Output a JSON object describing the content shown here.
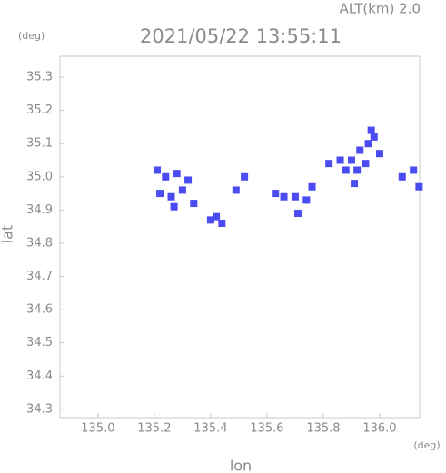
{
  "chart_data": {
    "type": "scatter",
    "title": "2021/05/22 13:55:11",
    "annotation": "ALT(km) 2.0",
    "y_unit": "(deg)",
    "x_unit": "(deg)",
    "x_label": "lon",
    "y_label": "lat",
    "color": "#4a4cf2",
    "xlim": [
      134.865,
      136.142
    ],
    "ylim": [
      34.275,
      35.363
    ],
    "xticks": [
      {
        "value": 135.0,
        "label": "135.0"
      },
      135.2,
      135.4,
      135.6,
      135.8,
      {
        "value": 136.0,
        "label": "136.0"
      }
    ],
    "yticks": [
      34.3,
      34.4,
      34.5,
      34.6,
      34.7,
      34.8,
      34.9,
      {
        "value": 35.0,
        "label": "35.0"
      },
      35.1,
      35.2,
      35.3
    ],
    "x": [
      135.21,
      135.24,
      135.28,
      135.22,
      135.26,
      135.3,
      135.32,
      135.27,
      135.34,
      135.4,
      135.44,
      135.42,
      135.52,
      135.49,
      135.63,
      135.66,
      135.7,
      135.74,
      135.76,
      135.71,
      135.82,
      135.86,
      135.9,
      135.93,
      135.96,
      135.98,
      136.0,
      135.95,
      135.92,
      135.88,
      135.97,
      136.12,
      136.14,
      136.08,
      135.91
    ],
    "y": [
      35.02,
      35.0,
      35.01,
      34.95,
      34.94,
      34.96,
      34.99,
      34.91,
      34.92,
      34.87,
      34.86,
      34.88,
      35.0,
      34.96,
      34.95,
      34.94,
      34.94,
      34.93,
      34.97,
      34.89,
      35.04,
      35.05,
      35.05,
      35.08,
      35.1,
      35.12,
      35.07,
      35.04,
      35.02,
      35.02,
      35.14,
      35.02,
      34.97,
      35.0,
      34.98
    ]
  }
}
